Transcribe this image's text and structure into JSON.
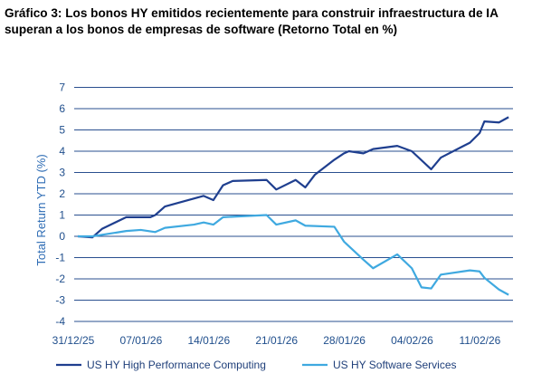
{
  "chart_data": {
    "type": "line",
    "title": "Gráfico 3: Los bonos HY emitidos recientemente para construir infraestructura de IA superan a los bonos de empresas de software (Retorno Total en %)",
    "xlabel": "",
    "ylabel": "Total Return  YTD (%)",
    "ylim": [
      -4,
      7
    ],
    "yticks": [
      -4,
      -3,
      -2,
      -1,
      0,
      1,
      2,
      3,
      4,
      5,
      6,
      7
    ],
    "x_unit": "days since 31/12/25",
    "xlim": [
      0,
      45
    ],
    "xticks": [
      {
        "day": 0,
        "label": "31/12/25"
      },
      {
        "day": 7,
        "label": "07/01/26"
      },
      {
        "day": 14,
        "label": "14/01/26"
      },
      {
        "day": 21,
        "label": "21/01/26"
      },
      {
        "day": 28,
        "label": "28/01/26"
      },
      {
        "day": 35,
        "label": "04/02/26"
      },
      {
        "day": 42,
        "label": "11/02/26"
      }
    ],
    "grid": true,
    "legend_position": "bottom",
    "series": [
      {
        "name": "US HY High Performance Computing",
        "color": "#1f3f8f",
        "points": [
          [
            0,
            0
          ],
          [
            1.5,
            -0.05
          ],
          [
            2.5,
            0.35
          ],
          [
            5,
            0.9
          ],
          [
            7.5,
            0.9
          ],
          [
            8,
            1.0
          ],
          [
            9,
            1.4
          ],
          [
            13,
            1.9
          ],
          [
            14,
            1.7
          ],
          [
            15,
            2.4
          ],
          [
            16,
            2.6
          ],
          [
            19.5,
            2.65
          ],
          [
            20.5,
            2.2
          ],
          [
            22.5,
            2.65
          ],
          [
            23.5,
            2.3
          ],
          [
            24.5,
            2.9
          ],
          [
            26.5,
            3.6
          ],
          [
            27.5,
            3.9
          ],
          [
            28,
            4.0
          ],
          [
            29.5,
            3.9
          ],
          [
            30.5,
            4.1
          ],
          [
            33,
            4.25
          ],
          [
            34.5,
            4.0
          ],
          [
            36.5,
            3.15
          ],
          [
            37.5,
            3.7
          ],
          [
            40.5,
            4.4
          ],
          [
            41.5,
            4.85
          ],
          [
            42,
            5.4
          ],
          [
            43.5,
            5.35
          ],
          [
            44.5,
            5.6
          ]
        ]
      },
      {
        "name": "US HY Software Services",
        "color": "#3fa9e0",
        "points": [
          [
            0,
            0
          ],
          [
            1.5,
            0
          ],
          [
            5,
            0.25
          ],
          [
            6.5,
            0.3
          ],
          [
            8,
            0.2
          ],
          [
            9,
            0.4
          ],
          [
            12,
            0.55
          ],
          [
            13,
            0.65
          ],
          [
            14,
            0.55
          ],
          [
            15,
            0.9
          ],
          [
            19.5,
            1.0
          ],
          [
            20.5,
            0.55
          ],
          [
            22.5,
            0.75
          ],
          [
            23.5,
            0.5
          ],
          [
            26.5,
            0.45
          ],
          [
            27.5,
            -0.25
          ],
          [
            29.5,
            -1.1
          ],
          [
            30.5,
            -1.5
          ],
          [
            33,
            -0.85
          ],
          [
            34.5,
            -1.5
          ],
          [
            35.5,
            -2.4
          ],
          [
            36.5,
            -2.45
          ],
          [
            37.5,
            -1.8
          ],
          [
            40.5,
            -1.6
          ],
          [
            41.5,
            -1.65
          ],
          [
            42,
            -1.95
          ],
          [
            43.5,
            -2.5
          ],
          [
            44.5,
            -2.75
          ]
        ]
      }
    ]
  }
}
